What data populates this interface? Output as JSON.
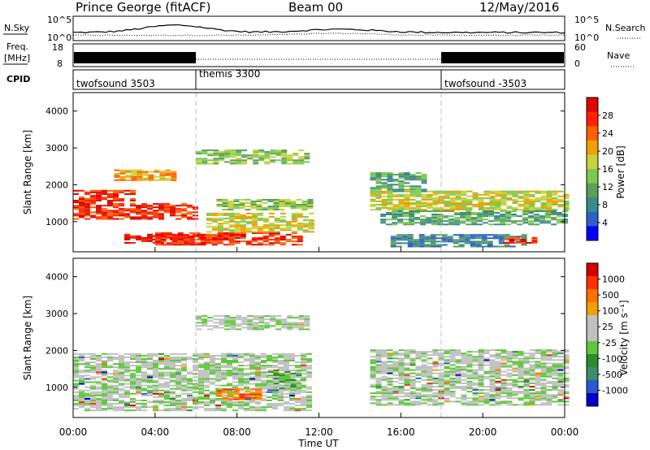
{
  "header": {
    "title": "Prince George (fitACF)",
    "beam": "Beam 00",
    "date": "12/May/2016"
  },
  "colors": {
    "power_scale": [
      "#0000ff",
      "#2f60c8",
      "#3a8a8a",
      "#5aa05a",
      "#7ec850",
      "#c8d23c",
      "#f0a000",
      "#ff6000",
      "#ff2000",
      "#e00000"
    ],
    "velocity_scale": [
      "#0000c8",
      "#2a5ad0",
      "#3a8f6a",
      "#2e8b2e",
      "#5ec83a",
      "#c0c0c0",
      "#c0c0c0",
      "#f0a000",
      "#ff7000",
      "#ff3000",
      "#d40000"
    ],
    "gray_scatter": "#c0c0c0",
    "line": "#000000"
  },
  "strips": {
    "nsky_label": "N.Sky",
    "nsky_ticks": [
      "10^5",
      "10^0"
    ],
    "nsearch_label": "N.Search",
    "freq_label": "Freq.",
    "freq_unit": "[MHz]",
    "freq_ticks": [
      "18",
      "8"
    ],
    "nave_label": "Nave",
    "nave_ticks": [
      "60",
      "0"
    ],
    "cpid_label": "CPID",
    "cpid_segments": [
      {
        "label": "twofsound 3503",
        "start": 0,
        "end": 6
      },
      {
        "label": "themis 3300",
        "start": 6,
        "end": 18
      },
      {
        "label": "twofsound -3503",
        "start": 18,
        "end": 24
      }
    ]
  },
  "chart_data": [
    {
      "type": "heatmap",
      "name": "power",
      "ylabel": "Slant Range [km]",
      "xlabel": "Time UT",
      "xlim": [
        0,
        24
      ],
      "ylim": [
        180,
        4500
      ],
      "yticks": [
        "1000",
        "2000",
        "3000",
        "4000"
      ],
      "colorbar_label": "Power [dB]",
      "colorbar_ticks": [
        "28",
        "24",
        "20",
        "16",
        "12",
        "8",
        "4"
      ],
      "bands": [
        {
          "t0": 0.0,
          "t1": 3.0,
          "r0": 1500,
          "r1": 1850,
          "level": 8
        },
        {
          "t0": 0.0,
          "t1": 6.0,
          "r0": 1050,
          "r1": 1500,
          "level": 8
        },
        {
          "t0": 2.5,
          "t1": 6.5,
          "r0": 400,
          "r1": 650,
          "level": 9
        },
        {
          "t0": 4.0,
          "t1": 11.0,
          "r0": 350,
          "r1": 700,
          "level": 8
        },
        {
          "t0": 6.5,
          "t1": 11.5,
          "r0": 700,
          "r1": 1200,
          "level": 5
        },
        {
          "t0": 7.0,
          "t1": 11.5,
          "r0": 1300,
          "r1": 1600,
          "level": 4
        },
        {
          "t0": 6.0,
          "t1": 11.5,
          "r0": 2550,
          "r1": 2950,
          "level": 4
        },
        {
          "t0": 2.0,
          "t1": 5.0,
          "r0": 2100,
          "r1": 2400,
          "level": 6
        },
        {
          "t0": 14.5,
          "t1": 24.0,
          "r0": 1300,
          "r1": 1800,
          "level": 5
        },
        {
          "t0": 15.0,
          "t1": 24.0,
          "r0": 900,
          "r1": 1300,
          "level": 3
        },
        {
          "t0": 15.5,
          "t1": 22.0,
          "r0": 300,
          "r1": 650,
          "level": 2
        },
        {
          "t0": 21.0,
          "t1": 22.5,
          "r0": 400,
          "r1": 550,
          "level": 8
        },
        {
          "t0": 14.5,
          "t1": 17.0,
          "r0": 1800,
          "r1": 2300,
          "level": 3
        }
      ]
    },
    {
      "type": "heatmap",
      "name": "velocity",
      "ylabel": "Slant Range [km]",
      "xlabel": "Time UT",
      "xlim": [
        0,
        24
      ],
      "ylim": [
        180,
        4500
      ],
      "yticks": [
        "1000",
        "2000",
        "3000",
        "4000"
      ],
      "xticks": [
        "00:00",
        "04:00",
        "08:00",
        "12:00",
        "16:00",
        "20:00",
        "00:00"
      ],
      "colorbar_label": "Velocity [m s⁻¹]",
      "colorbar_ticks": [
        "1000",
        "500",
        "100",
        "25",
        "-25",
        "-100",
        "-500",
        "-1000"
      ],
      "bands": [
        {
          "t0": 0.0,
          "t1": 11.5,
          "r0": 350,
          "r1": 1900,
          "level": 5
        },
        {
          "t0": 6.0,
          "t1": 11.5,
          "r0": 2550,
          "r1": 2950,
          "level": 5
        },
        {
          "t0": 9.5,
          "t1": 11.0,
          "r0": 900,
          "r1": 1450,
          "level": 4
        },
        {
          "t0": 14.5,
          "t1": 24.0,
          "r0": 500,
          "r1": 2000,
          "level": 5
        },
        {
          "t0": 7.0,
          "t1": 9.0,
          "r0": 650,
          "r1": 950,
          "level": 8
        }
      ]
    }
  ]
}
